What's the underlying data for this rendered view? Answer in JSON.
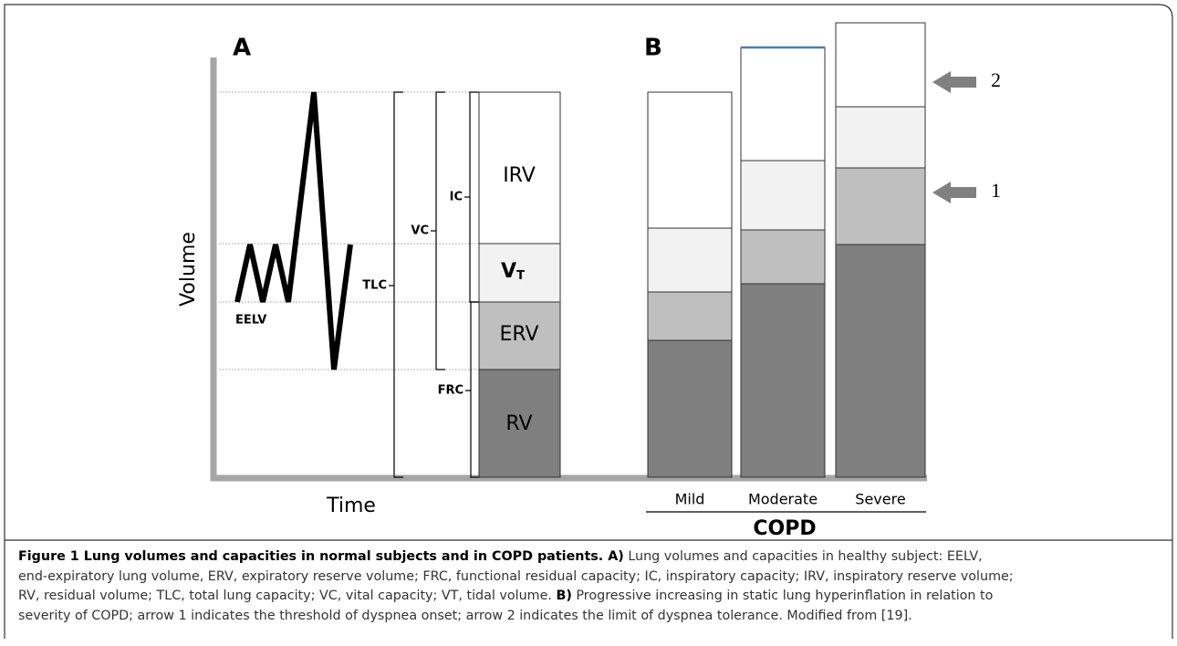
{
  "panels": {
    "a": "A",
    "b": "B"
  },
  "axes": {
    "y": "Volume",
    "x": "Time"
  },
  "labels": {
    "eelv": "EELV",
    "tlc": "TLC",
    "vc": "VC",
    "ic": "IC",
    "frc": "FRC",
    "irv": "IRV",
    "vt": {
      "main": "V",
      "sub": "T"
    },
    "erv": "ERV",
    "rv": "RV"
  },
  "groups": {
    "mild": "Mild",
    "moderate": "Moderate",
    "severe": "Severe",
    "copd": "COPD"
  },
  "arrows": {
    "first": "1",
    "second": "2"
  },
  "caption": [
    [
      {
        "t": "Figure 1 Lung volumes and capacities in normal subjects and in COPD patients. A)",
        "b": true
      },
      {
        "t": " Lung volumes and capacities in healthy subject: EELV,",
        "b": false
      }
    ],
    [
      {
        "t": "end-expiratory lung volume, ERV, expiratory reserve volume; FRC, functional residual capacity; IC, inspiratory capacity; IRV, inspiratory reserve volume;",
        "b": false
      }
    ],
    [
      {
        "t": "RV, residual volume; TLC, total lung capacity; VC, vital capacity; VT, tidal volume. ",
        "b": false
      },
      {
        "t": "B)",
        "b": true
      },
      {
        "t": " Progressive increasing in static lung hyperinflation in relation to",
        "b": false
      }
    ],
    [
      {
        "t": "severity of COPD; arrow 1 indicates the threshold of dyspnea onset; arrow 2 indicates the limit of dyspnea tolerance. Modified from [19].",
        "b": false
      }
    ]
  ]
}
